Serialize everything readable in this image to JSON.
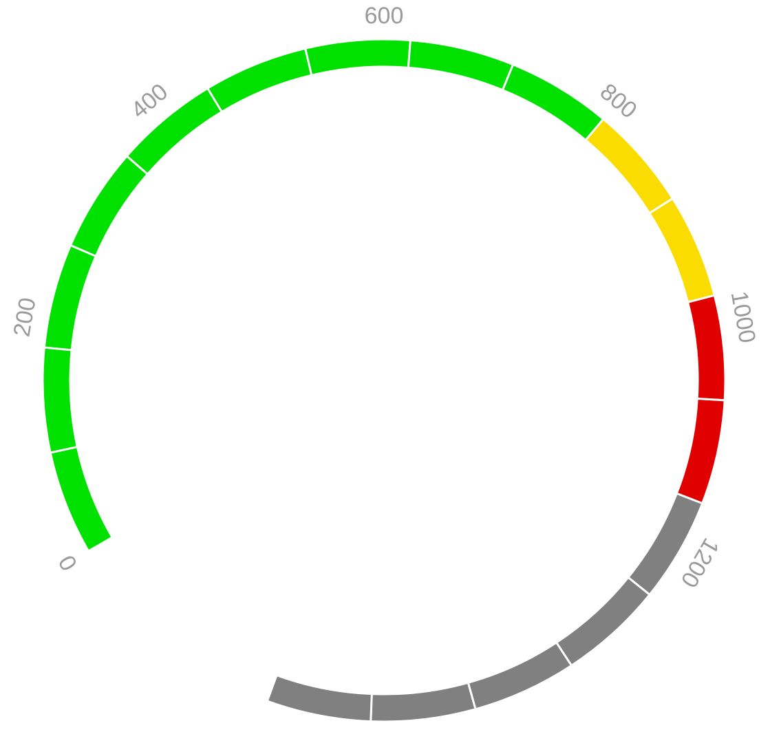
{
  "chart_data": {
    "type": "gauge",
    "title": "",
    "range": [
      0,
      1200
    ],
    "tick_labels": [
      "0",
      "200",
      "400",
      "600",
      "800",
      "1000",
      "1200"
    ],
    "tick_values": [
      0,
      200,
      400,
      600,
      800,
      1000,
      1200
    ],
    "segment_count": 18,
    "bands": [
      {
        "from": 0,
        "to": 800,
        "color": "#00e100"
      },
      {
        "from": 800,
        "to": 940,
        "color": "#fadc00"
      },
      {
        "from": 940,
        "to": 1200,
        "color": "#e10000"
      },
      {
        "from": 1200,
        "to": 1600,
        "color": "#808080"
      }
    ],
    "segment_separator_color": "#ffffff",
    "label_color": "#9a9a9a"
  }
}
